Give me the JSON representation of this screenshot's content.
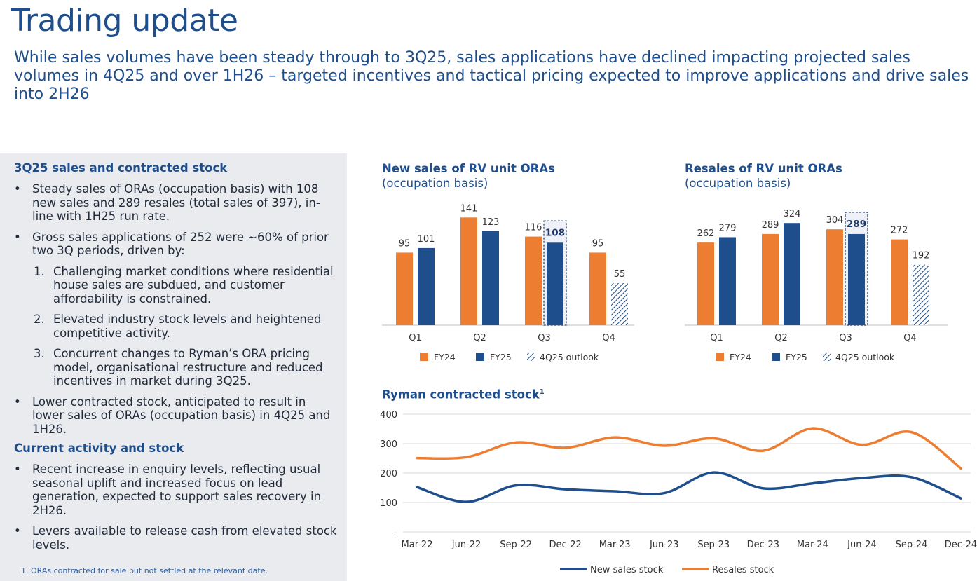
{
  "header": {
    "title": "Trading update",
    "subtitle": "While sales volumes have been steady through to 3Q25, sales applications have declined impacting projected sales volumes in 4Q25 and over 1H26 – targeted incentives and tactical pricing expected to improve applications and drive sales into 2H26"
  },
  "left_panel": {
    "section1_heading": "3Q25 sales and contracted stock",
    "bullet1": "Steady sales of ORAs (occupation basis) with 108 new sales and 289 resales (total sales of 397), in-line with 1H25 run rate.",
    "bullet2": "Gross sales applications of 252 were ~60% of prior two 3Q periods, driven by:",
    "sub1_num": "1.",
    "sub1": "Challenging market conditions where residential house sales are subdued, and customer affordability is constrained.",
    "sub2_num": "2.",
    "sub2": "Elevated industry stock levels and heightened competitive activity.",
    "sub3_num": "3.",
    "sub3": "Concurrent changes to Ryman’s ORA pricing model, organisational restructure and reduced incentives in market during 3Q25.",
    "bullet3": "Lower contracted stock, anticipated to result in lower sales of ORAs (occupation basis) in 4Q25 and 1H26.",
    "section2_heading": "Current activity and stock",
    "bullet4": "Recent increase in enquiry levels, reflecting usual seasonal uplift and increased focus on lead generation, expected to support sales recovery in 2H26.",
    "bullet5": "Levers available to release cash from elevated stock levels.",
    "footnote": "1. ORAs contracted for sale but not settled at the relevant date."
  },
  "colors": {
    "fy24": "#ed7d31",
    "fy25": "#1f4e8c",
    "outlook": "#1f4e8c",
    "text": "#1f4e8c",
    "panel": "#e9ebef"
  },
  "chart_data": [
    {
      "type": "bar",
      "title": "New sales of RV unit ORAs",
      "subtitle": "(occupation basis)",
      "categories": [
        "Q1",
        "Q2",
        "Q3",
        "Q4"
      ],
      "series": [
        {
          "name": "FY24",
          "values": [
            95,
            141,
            116,
            95
          ]
        },
        {
          "name": "FY25",
          "values": [
            101,
            123,
            108,
            null
          ]
        },
        {
          "name": "4Q25 outlook",
          "values": [
            null,
            null,
            null,
            55
          ]
        }
      ],
      "highlight": {
        "category": "Q3",
        "series": "FY25",
        "value": 108
      },
      "legend_position": "bottom",
      "grid": false
    },
    {
      "type": "bar",
      "title": "Resales of RV unit ORAs",
      "subtitle": "(occupation basis)",
      "categories": [
        "Q1",
        "Q2",
        "Q3",
        "Q4"
      ],
      "series": [
        {
          "name": "FY24",
          "values": [
            262,
            289,
            304,
            272
          ]
        },
        {
          "name": "FY25",
          "values": [
            279,
            324,
            289,
            null
          ]
        },
        {
          "name": "4Q25 outlook",
          "values": [
            null,
            null,
            null,
            192
          ]
        }
      ],
      "highlight": {
        "category": "Q3",
        "series": "FY25",
        "value": 289
      },
      "legend_position": "bottom",
      "grid": false
    },
    {
      "type": "line",
      "title": "Ryman contracted stock",
      "title_sup": "1",
      "x": [
        "Mar-22",
        "Jun-22",
        "Sep-22",
        "Dec-22",
        "Mar-23",
        "Jun-23",
        "Sep-23",
        "Dec-23",
        "Mar-24",
        "Jun-24",
        "Sep-24",
        "Dec-24"
      ],
      "series": [
        {
          "name": "New sales stock",
          "values": [
            152,
            102,
            158,
            145,
            138,
            132,
            202,
            148,
            165,
            183,
            186,
            114
          ]
        },
        {
          "name": "Resales stock",
          "values": [
            251,
            254,
            304,
            286,
            321,
            293,
            318,
            276,
            352,
            296,
            339,
            216
          ]
        }
      ],
      "yticks": [
        "-",
        "100",
        "200",
        "300",
        "400"
      ],
      "ylim": [
        0,
        400
      ],
      "legend_position": "bottom",
      "grid": true
    }
  ]
}
